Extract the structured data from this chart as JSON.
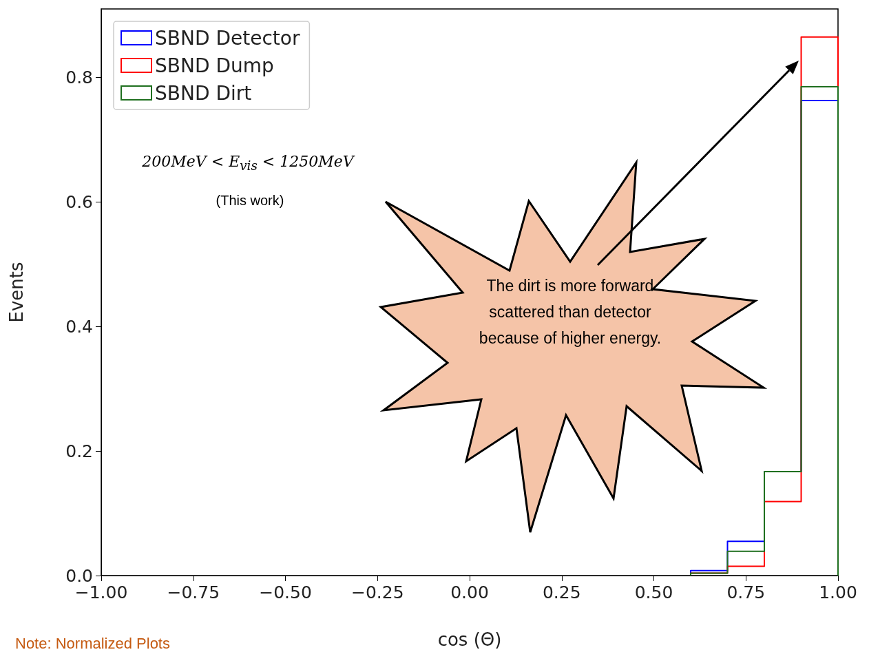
{
  "chart_data": {
    "type": "histogram",
    "xlabel": "cos (Θ)",
    "ylabel": "Events",
    "bins": [
      0.6,
      0.7,
      0.8,
      0.9,
      1.0
    ],
    "series": [
      {
        "name": "SBND Detector",
        "color": "#0000ff",
        "values": [
          0.008,
          0.055,
          0.167,
          0.763
        ]
      },
      {
        "name": "SBND Dump",
        "color": "#ff0000",
        "values": [
          0.004,
          0.015,
          0.119,
          0.865
        ]
      },
      {
        "name": "SBND Dirt",
        "color": "#1f6f1f",
        "values": [
          0.004,
          0.039,
          0.167,
          0.785
        ]
      }
    ],
    "xlim": [
      -1,
      1
    ],
    "xticks": [
      {
        "value": -1,
        "label": "−1.00"
      },
      {
        "value": -0.75,
        "label": "−0.75"
      },
      {
        "value": -0.5,
        "label": "−0.50"
      },
      {
        "value": -0.25,
        "label": "−0.25"
      },
      {
        "value": 0,
        "label": "0.00"
      },
      {
        "value": 0.25,
        "label": "0.25"
      },
      {
        "value": 0.5,
        "label": "0.50"
      },
      {
        "value": 0.75,
        "label": "0.75"
      },
      {
        "value": 1,
        "label": "1.00"
      }
    ],
    "ylim": [
      0,
      0.91
    ],
    "yticks": [
      {
        "value": 0,
        "label": "0.0"
      },
      {
        "value": 0.2,
        "label": "0.2"
      },
      {
        "value": 0.4,
        "label": "0.4"
      },
      {
        "value": 0.6,
        "label": "0.6"
      },
      {
        "value": 0.8,
        "label": "0.8"
      }
    ],
    "legend": "top left",
    "annotations": [
      "200MeV < E$_{vis}$ < 1250MeV",
      "(This work)",
      "The dirt is more forward scattered than detector because of higher energy.",
      "Note: Normalized Plots"
    ]
  }
}
